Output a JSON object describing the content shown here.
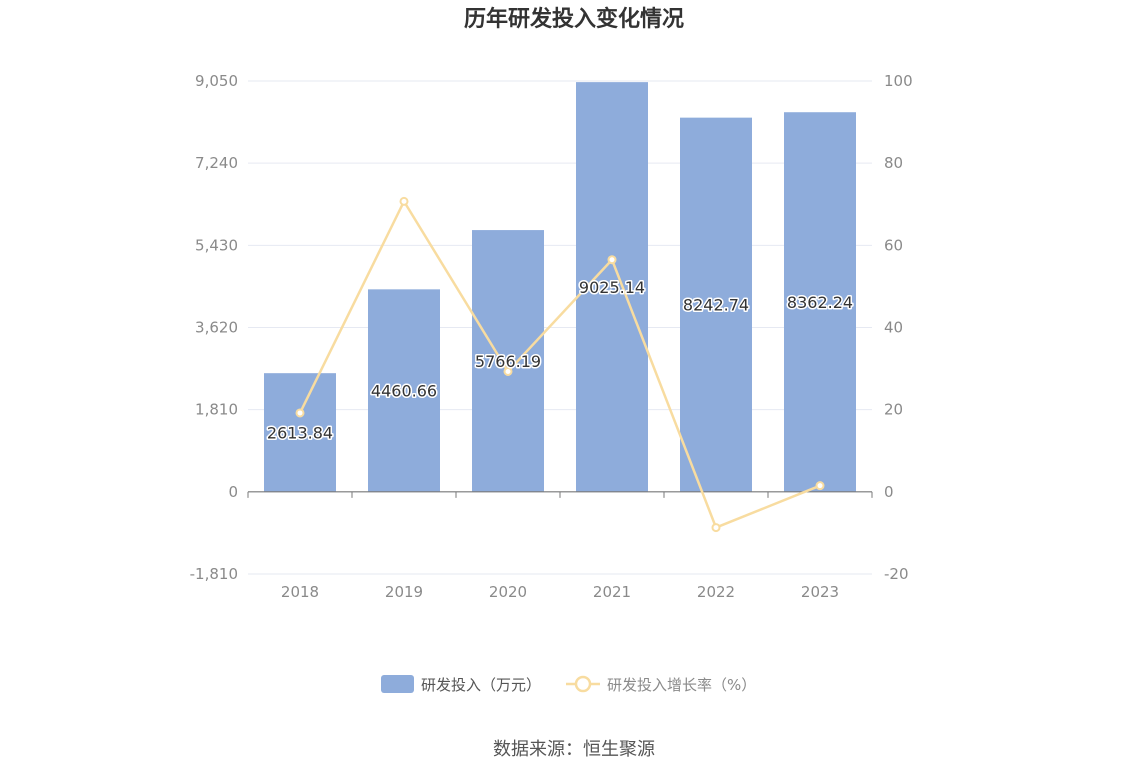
{
  "chart_data": {
    "type": "bar",
    "title": "历年研发投入变化情况",
    "categories": [
      "2018",
      "2019",
      "2020",
      "2021",
      "2022",
      "2023"
    ],
    "series": [
      {
        "name": "研发投入（万元）",
        "type": "bar",
        "axis": "left",
        "values": [
          2613.84,
          4460.66,
          5766.19,
          9025.14,
          8242.74,
          8362.24
        ],
        "labels": [
          "2613.84",
          "4460.66",
          "5766.19",
          "9025.14",
          "8242.74",
          "8362.24"
        ]
      },
      {
        "name": "研发投入增长率（%）",
        "type": "line",
        "axis": "right",
        "values": [
          19.2,
          70.7,
          29.3,
          56.5,
          -8.7,
          1.5
        ]
      }
    ],
    "y_left": {
      "ticks": [
        "9,050",
        "7,240",
        "5,430",
        "3,620",
        "1,810",
        "0",
        "-1,810"
      ],
      "ylim": [
        -1810,
        9050
      ]
    },
    "y_right": {
      "ticks": [
        "100",
        "80",
        "60",
        "40",
        "20",
        "0",
        "-20"
      ],
      "ylim": [
        -20,
        100
      ]
    },
    "colors": {
      "bar": "#8eacdb",
      "line": "#f8dca0",
      "grid": "#e6e9f2",
      "axis": "#7a7a7a"
    },
    "legend_position": "bottom",
    "grid": true
  },
  "source": "数据来源：恒生聚源"
}
